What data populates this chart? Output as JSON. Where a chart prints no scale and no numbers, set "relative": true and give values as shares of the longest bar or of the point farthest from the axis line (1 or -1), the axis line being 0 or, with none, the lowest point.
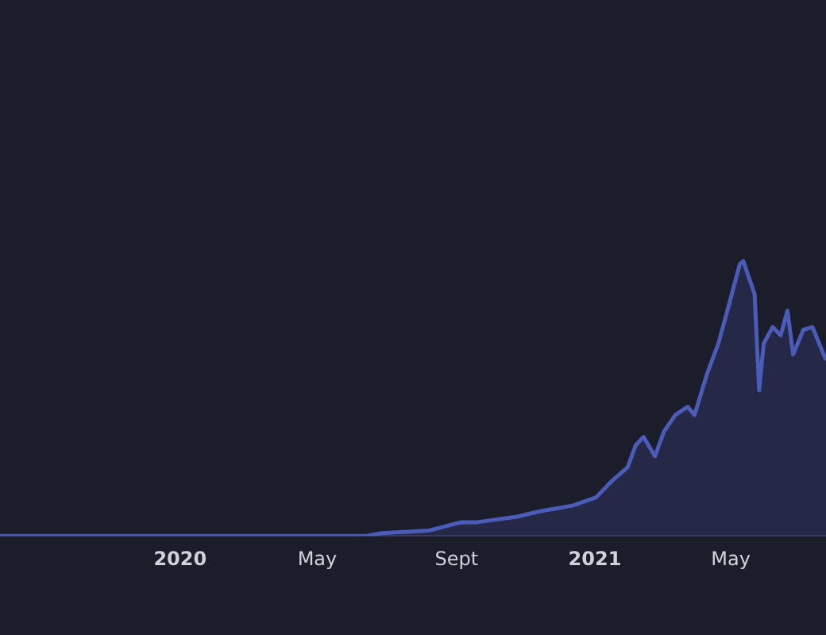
{
  "chart_data": {
    "type": "area",
    "relative": true,
    "legend": false,
    "grid": false,
    "xlim": [
      "2019-07-26",
      "2021-07-24"
    ],
    "xticks": [
      {
        "value": "2020",
        "label": "2020"
      },
      {
        "value": "2020-05",
        "label": "May"
      },
      {
        "value": "2020-09",
        "label": "Sept"
      },
      {
        "value": "2021",
        "label": "2021"
      },
      {
        "value": "2021-05",
        "label": "May"
      }
    ],
    "x": [
      "2019-07-26",
      "2020-06-13",
      "2020-06-27",
      "2020-08-08",
      "2020-09-05",
      "2020-09-19",
      "2020-10-24",
      "2020-11-14",
      "2020-12-12",
      "2021-01-02",
      "2021-01-16",
      "2021-01-30",
      "2021-02-06",
      "2021-02-13",
      "2021-02-23",
      "2021-03-03",
      "2021-03-13",
      "2021-03-24",
      "2021-03-30",
      "2021-04-10",
      "2021-04-20",
      "2021-04-28",
      "2021-05-09",
      "2021-05-12",
      "2021-05-22",
      "2021-05-26",
      "2021-05-30",
      "2021-06-07",
      "2021-06-14",
      "2021-06-20",
      "2021-06-25",
      "2021-07-04",
      "2021-07-12",
      "2021-07-24"
    ],
    "series": [
      {
        "color": "#4b5cb8",
        "values": [
          0,
          0,
          0.01,
          0.02,
          0.05,
          0.05,
          0.07,
          0.09,
          0.11,
          0.14,
          0.2,
          0.25,
          0.33,
          0.36,
          0.29,
          0.38,
          0.44,
          0.47,
          0.44,
          0.59,
          0.7,
          0.82,
          0.99,
          1,
          0.88,
          0.53,
          0.7,
          0.76,
          0.73,
          0.82,
          0.66,
          0.75,
          0.76,
          0.64
        ]
      }
    ]
  }
}
